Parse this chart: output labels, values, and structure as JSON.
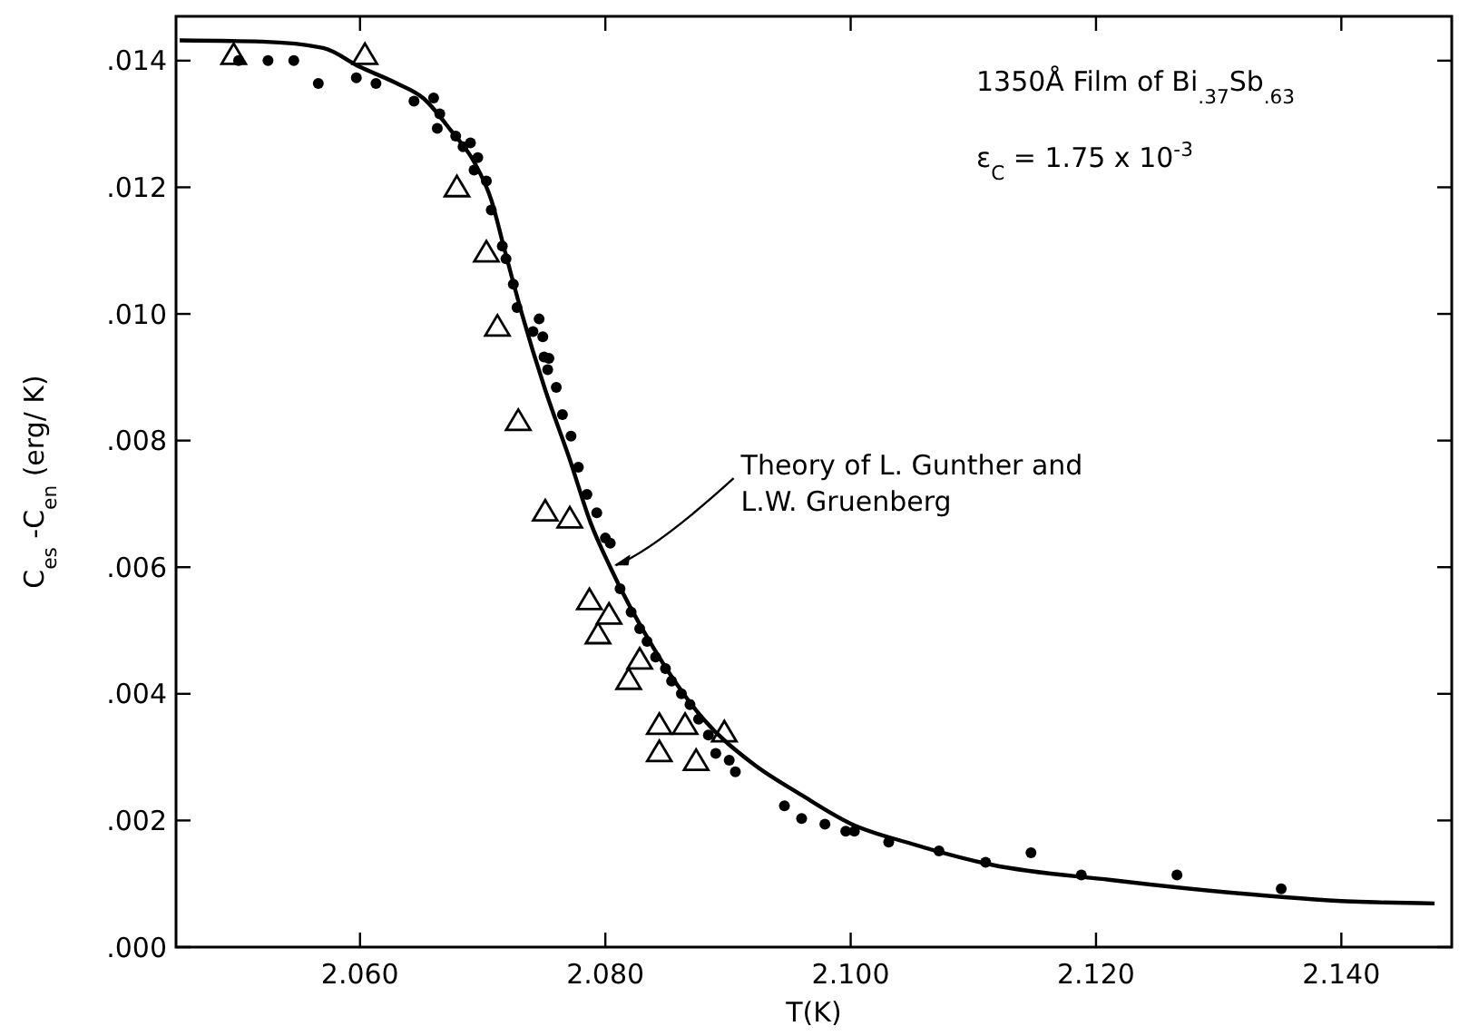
{
  "chart_data": {
    "type": "scatter",
    "xlabel": "T(K)",
    "ylabel": "C$_{es}$ -C$_{en}$ (erg/ K)",
    "xlim": [
      2.045,
      2.149
    ],
    "ylim": [
      0,
      0.0147
    ],
    "xticks": [
      {
        "value": 2.06,
        "label": "2.060"
      },
      {
        "value": 2.08,
        "label": "2.080"
      },
      {
        "value": 2.1,
        "label": "2.100"
      },
      {
        "value": 2.12,
        "label": "2.120"
      },
      {
        "value": 2.14,
        "label": "2.140"
      }
    ],
    "yticks": [
      {
        "value": 0,
        "label": ".000"
      },
      {
        "value": 0.002,
        "label": ".002"
      },
      {
        "value": 0.004,
        "label": ".004"
      },
      {
        "value": 0.006,
        "label": ".006"
      },
      {
        "value": 0.008,
        "label": ".008"
      },
      {
        "value": 0.01,
        "label": ".010"
      },
      {
        "value": 0.012,
        "label": ".012"
      },
      {
        "value": 0.014,
        "label": ".014"
      }
    ],
    "grid": false,
    "series": [
      {
        "type": "scatter",
        "marker": "circle",
        "color": "#000000",
        "x": [
          2.0501,
          2.0525,
          2.0546,
          2.0566,
          2.0597,
          2.0613,
          2.0644,
          2.066,
          2.0665,
          2.0663,
          2.0678,
          2.0684,
          2.069,
          2.0696,
          2.0693,
          2.0703,
          2.0707,
          2.0716,
          2.0719,
          2.0725,
          2.0728,
          2.0746,
          2.0741,
          2.0749,
          2.075,
          2.0754,
          2.0753,
          2.076,
          2.0765,
          2.0772,
          2.0778,
          2.0785,
          2.0793,
          2.08,
          2.0804,
          2.0812,
          2.0821,
          2.0828,
          2.0834,
          2.0841,
          2.0849,
          2.0854,
          2.0862,
          2.0869,
          2.0876,
          2.0884,
          2.089,
          2.0901,
          2.0906,
          2.0946,
          2.096,
          2.0979,
          2.0996,
          2.1003,
          2.1031,
          2.1072,
          2.111,
          2.1147,
          2.1188,
          2.1266,
          2.1351
        ],
        "values": [
          0.014,
          0.014,
          0.014,
          0.01364,
          0.01373,
          0.01364,
          0.01336,
          0.01341,
          0.01316,
          0.01293,
          0.01281,
          0.01264,
          0.0127,
          0.01247,
          0.01227,
          0.0121,
          0.01164,
          0.01107,
          0.01087,
          0.01047,
          0.0101,
          0.00992,
          0.00972,
          0.00964,
          0.00932,
          0.0093,
          0.00912,
          0.00884,
          0.00841,
          0.00807,
          0.00758,
          0.00715,
          0.00686,
          0.00646,
          0.00638,
          0.00566,
          0.00529,
          0.00503,
          0.00483,
          0.00458,
          0.0044,
          0.0042,
          0.004,
          0.00383,
          0.0036,
          0.00335,
          0.00306,
          0.00295,
          0.00277,
          0.00223,
          0.00203,
          0.00194,
          0.00183,
          0.00183,
          0.00166,
          0.00152,
          0.00134,
          0.00149,
          0.00114,
          0.00114,
          0.00092
        ]
      },
      {
        "type": "scatter",
        "marker": "triangle",
        "color": "#000000",
        "x": [
          2.0497,
          2.0604,
          2.0679,
          2.0703,
          2.0712,
          2.0729,
          2.0751,
          2.0771,
          2.0787,
          2.0803,
          2.0794,
          2.0828,
          2.0819,
          2.0844,
          2.0865,
          2.0844,
          2.0874,
          2.0897
        ],
        "values": [
          0.01407,
          0.01407,
          0.01198,
          0.01095,
          0.00978,
          0.00829,
          0.00686,
          0.00675,
          0.00546,
          0.00523,
          0.00492,
          0.00452,
          0.0042,
          0.00349,
          0.00349,
          0.00306,
          0.00292,
          0.00337
        ]
      },
      {
        "type": "line",
        "marker": "none",
        "line_style": "solid",
        "color": "#000000",
        "x": [
          2.0453,
          2.052,
          2.057,
          2.06,
          2.0629,
          2.0652,
          2.0674,
          2.0693,
          2.0707,
          2.0718,
          2.0732,
          2.0751,
          2.0771,
          2.0788,
          2.0804,
          2.084,
          2.088,
          2.092,
          2.096,
          2.1,
          2.105,
          2.1115,
          2.1212,
          2.131,
          2.1409,
          2.1476
        ],
        "values": [
          0.01432,
          0.0143,
          0.0142,
          0.0139,
          0.01365,
          0.0134,
          0.0129,
          0.0124,
          0.0118,
          0.011,
          0.01,
          0.0088,
          0.0077,
          0.0067,
          0.006,
          0.0047,
          0.0036,
          0.0029,
          0.0024,
          0.00195,
          0.00163,
          0.0013,
          0.00106,
          0.00086,
          0.00072,
          0.00069
        ]
      }
    ],
    "annotations": [
      "1350Å Film of Bi$_{.37}$Sb$_{.63}$",
      "ε$_{C}$ = 1.75 x 10$^{-3}$",
      {
        "text": "Theory of L. Gunther and L.W. Gruenberg",
        "x": 2.0804,
        "y": 0.006
      }
    ]
  }
}
